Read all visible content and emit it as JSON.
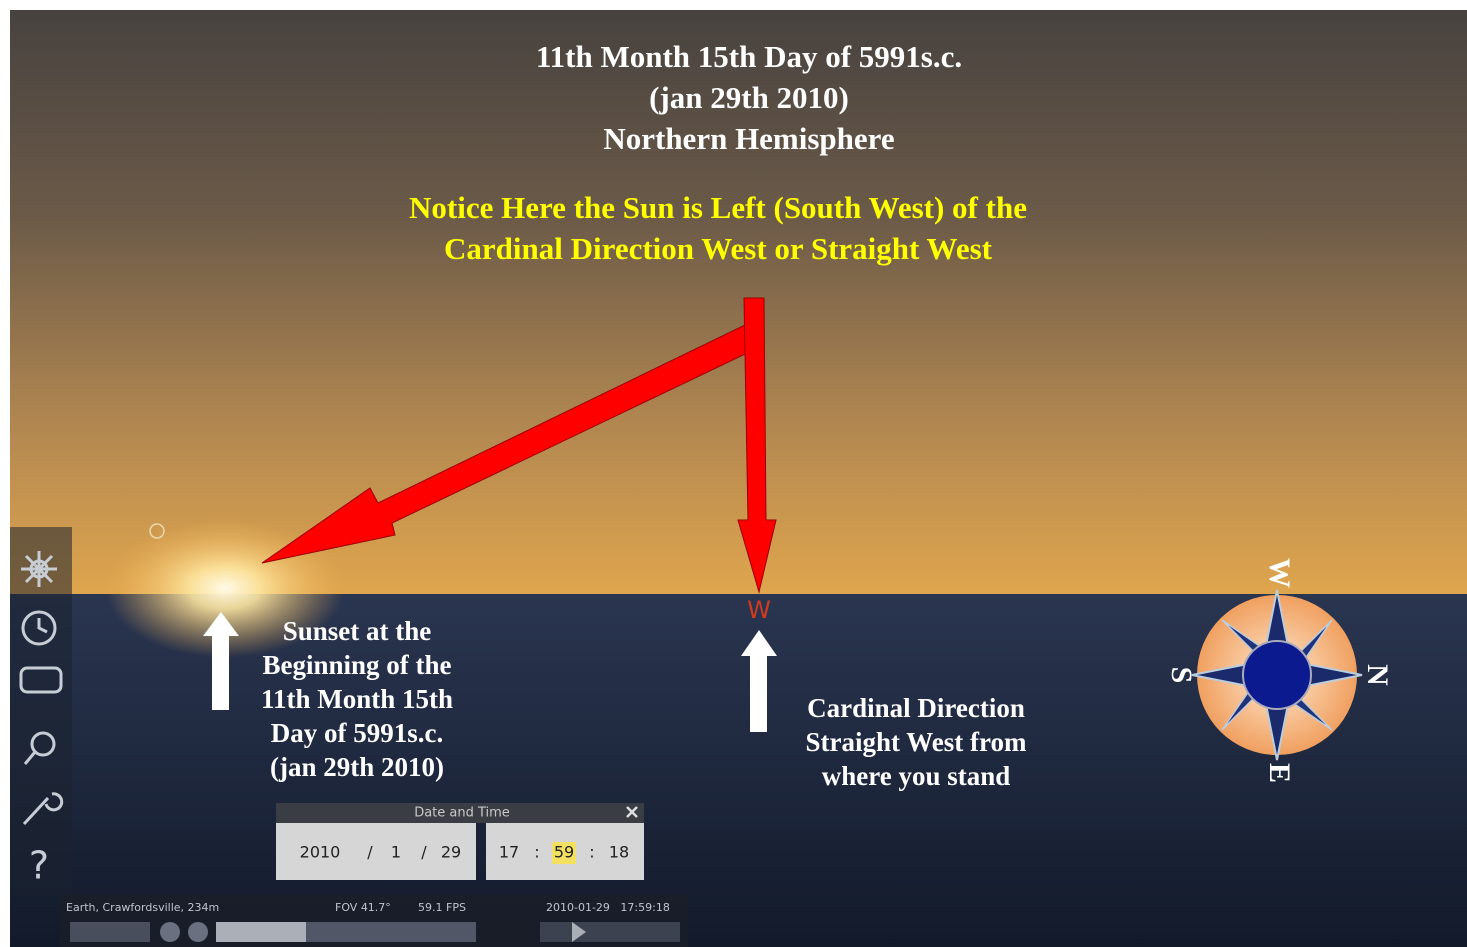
{
  "header": {
    "lines": [
      "11th Month 15th Day of 5991s.c.",
      "(jan 29th 2010)",
      "Northern Hemisphere"
    ]
  },
  "notice": {
    "lines": [
      "Notice Here the Sun is Left (South West) of the",
      "Cardinal Direction West or Straight West"
    ]
  },
  "sunset_note": {
    "lines": [
      "Sunset at the",
      "Beginning of the",
      "11th Month 15th",
      "Day of 5991s.c.",
      "(jan 29th 2010)"
    ]
  },
  "west_note": {
    "lines": [
      "Cardinal Direction",
      "Straight West from",
      "where you stand"
    ]
  },
  "cardinal_marker": "W",
  "compass": {
    "top": "W",
    "right": "N",
    "bottom": "E",
    "left": "S"
  },
  "toolbar": {
    "help_icon": "?"
  },
  "date_dialog": {
    "title": "Date and Time",
    "year": "2010",
    "month": "1",
    "day": "29",
    "date_separator": "/",
    "hour": "17",
    "minute": "59",
    "second": "18",
    "time_separator": ":"
  },
  "status_bar": {
    "location": "Earth, Crawfordsville, 234m",
    "fov": "FOV 41.7°",
    "fps": "59.1 FPS",
    "datetime": "2010-01-29   17:59:18"
  }
}
